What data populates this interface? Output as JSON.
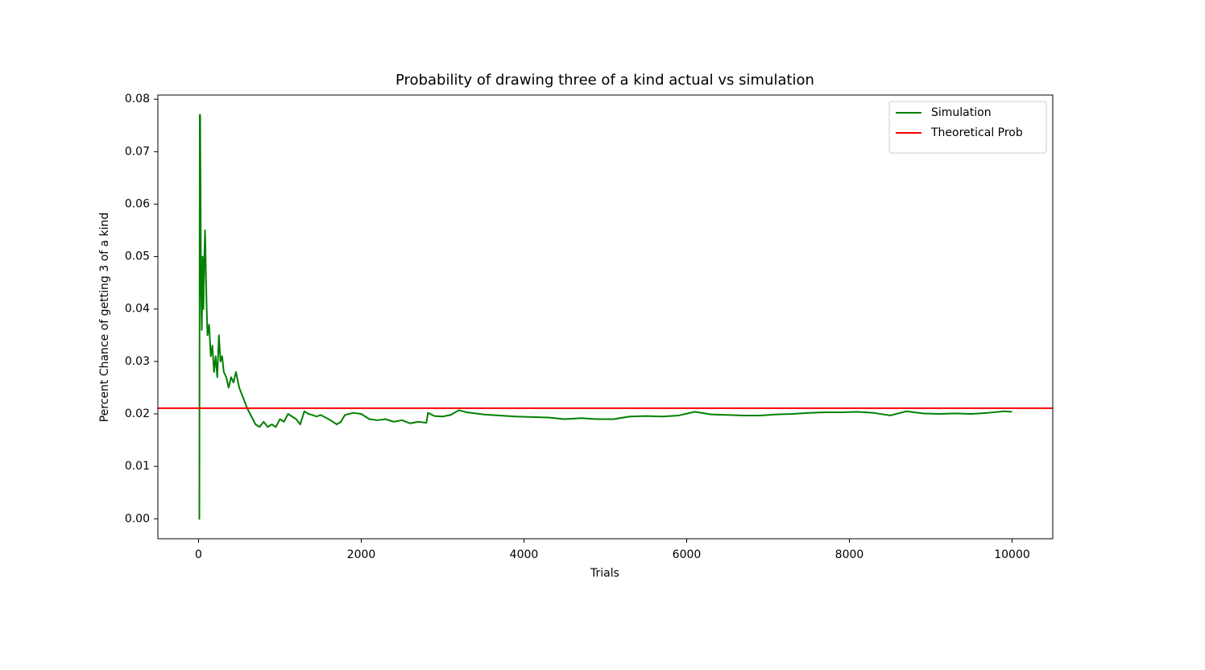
{
  "chart_data": {
    "type": "line",
    "title": "Probability of drawing three of a kind actual vs simulation",
    "xlabel": "Trials",
    "ylabel": "Percent Chance of getting 3 of a kind",
    "x": [
      0,
      10,
      15,
      20,
      30,
      40,
      50,
      60,
      70,
      80,
      90,
      100,
      110,
      130,
      150,
      170,
      190,
      210,
      230,
      250,
      270,
      290,
      310,
      340,
      370,
      400,
      430,
      460,
      500,
      550,
      600,
      650,
      700,
      750,
      800,
      850,
      900,
      950,
      1000,
      1050,
      1100,
      1150,
      1200,
      1250,
      1300,
      1350,
      1400,
      1450,
      1500,
      1600,
      1700,
      1750,
      1800,
      1900,
      2000,
      2100,
      2200,
      2300,
      2400,
      2500,
      2600,
      2700,
      2800,
      2820,
      2900,
      3000,
      3100,
      3200,
      3300,
      3500,
      3700,
      3900,
      4100,
      4300,
      4500,
      4700,
      4900,
      5100,
      5300,
      5500,
      5700,
      5900,
      6100,
      6300,
      6500,
      6700,
      6900,
      7100,
      7300,
      7500,
      7700,
      7900,
      8100,
      8300,
      8500,
      8700,
      8900,
      9100,
      9300,
      9500,
      9700,
      9900,
      10000
    ],
    "series": [
      {
        "name": "Simulation",
        "color": "green",
        "values": [
          0,
          0,
          0.077,
          0.077,
          0.045,
          0.036,
          0.05,
          0.04,
          0.049,
          0.055,
          0.047,
          0.04,
          0.035,
          0.037,
          0.031,
          0.033,
          0.028,
          0.031,
          0.027,
          0.035,
          0.03,
          0.031,
          0.028,
          0.027,
          0.025,
          0.027,
          0.026,
          0.028,
          0.025,
          0.023,
          0.021,
          0.0195,
          0.018,
          0.0175,
          0.0185,
          0.0175,
          0.018,
          0.0175,
          0.019,
          0.0185,
          0.02,
          0.0195,
          0.019,
          0.018,
          0.0205,
          0.02,
          0.0198,
          0.0195,
          0.0198,
          0.019,
          0.018,
          0.0185,
          0.0198,
          0.0202,
          0.02,
          0.019,
          0.0188,
          0.019,
          0.0185,
          0.0188,
          0.0182,
          0.0185,
          0.0183,
          0.0202,
          0.0196,
          0.0195,
          0.0198,
          0.0207,
          0.0203,
          0.0199,
          0.0197,
          0.0195,
          0.0194,
          0.0193,
          0.019,
          0.0192,
          0.019,
          0.019,
          0.0195,
          0.0196,
          0.0195,
          0.0197,
          0.0204,
          0.0199,
          0.0198,
          0.0197,
          0.0197,
          0.0199,
          0.02,
          0.0202,
          0.0203,
          0.0203,
          0.0204,
          0.0202,
          0.0197,
          0.0205,
          0.0201,
          0.02,
          0.0201,
          0.02,
          0.0202,
          0.0205,
          0.0204
        ]
      }
    ],
    "hlines": [
      {
        "name": "Theoretical Prob",
        "color": "red",
        "value": 0.0211
      }
    ],
    "xlim": [
      -500,
      10500
    ],
    "ylim": [
      -0.0038,
      0.0808
    ],
    "xticks": [
      0,
      2000,
      4000,
      6000,
      8000,
      10000
    ],
    "yticks": [
      {
        "value": 0,
        "label": "0.00"
      },
      0.01,
      0.02,
      0.03,
      0.04,
      0.05,
      0.06,
      0.07,
      0.08
    ],
    "legend": "upper right"
  }
}
